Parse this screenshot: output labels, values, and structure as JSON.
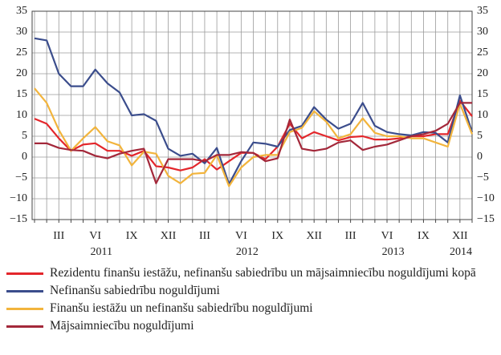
{
  "chart_data": {
    "type": "line",
    "categories": [
      null,
      null,
      "III",
      null,
      null,
      "VI",
      null,
      null,
      "IX",
      null,
      null,
      "XII",
      null,
      null,
      "III",
      null,
      null,
      "VI",
      null,
      null,
      "IX",
      null,
      null,
      "XII",
      null,
      null,
      "III",
      null,
      null,
      "VI",
      null,
      null,
      "IX",
      null,
      null,
      "XII",
      null
    ],
    "year_groups": [
      {
        "label": "2011",
        "span": 12
      },
      {
        "label": "2012",
        "span": 12
      },
      {
        "label": "2013",
        "span": 12
      },
      {
        "label": "2014",
        "span": 1
      }
    ],
    "ylim": [
      -15,
      35
    ],
    "yticks": [
      {
        "value": -15,
        "label": "−15"
      },
      {
        "value": -10,
        "label": "−10"
      },
      {
        "value": -5,
        "label": "−5"
      },
      0,
      5,
      10,
      15,
      20,
      25,
      30,
      35
    ],
    "grid": true,
    "series": [
      {
        "name": "Rezidentu finanšu iestāžu, nefinanšu sabiedrību un mājsaimniecību noguldījumi kopā",
        "color": "#e3262b",
        "values": [
          9.2,
          8,
          4.5,
          1.5,
          3,
          3.3,
          1.5,
          1.5,
          0.3,
          1.5,
          -2.2,
          -2.5,
          -3.2,
          -2.5,
          -0.5,
          -3,
          -1,
          1,
          1,
          -0.5,
          2.5,
          8,
          4.5,
          6,
          5,
          4,
          4.8,
          5,
          4.2,
          4.2,
          4.5,
          5,
          5,
          5.5,
          5.5,
          13.5,
          9.8
        ]
      },
      {
        "name": "Nefinanšu sabiedrību noguldījumi",
        "color": "#3b4d8c",
        "values": [
          28.5,
          28,
          20,
          17,
          17,
          21,
          17.7,
          15.5,
          10,
          10.3,
          8.7,
          2,
          0.3,
          0.8,
          -1.5,
          2.2,
          -6.5,
          -1,
          3.5,
          3.2,
          2.5,
          6.5,
          7.5,
          12,
          9,
          6.8,
          8,
          13,
          7.5,
          6,
          5.5,
          5.2,
          6,
          5.8,
          3.5,
          14.8,
          6
        ]
      },
      {
        "name": "Finanšu iestāžu un nefinanšu sabiedrību noguldījumi",
        "color": "#f2b43c",
        "values": [
          16.5,
          13,
          6.5,
          1.5,
          4.5,
          7.2,
          3.8,
          2.8,
          -2,
          1.3,
          0.8,
          -4.5,
          -6.3,
          -4,
          -3.8,
          0.5,
          -7,
          -2.5,
          0,
          0.5,
          0.5,
          6,
          7,
          11,
          8.5,
          4.5,
          5.5,
          9.3,
          5.8,
          5,
          5,
          4.5,
          4.5,
          3.5,
          2.5,
          12.8,
          5.5
        ]
      },
      {
        "name": "Mājsaimniecību noguldījumi",
        "color": "#a3283a",
        "values": [
          3.3,
          3.3,
          2.2,
          1.7,
          1.5,
          0.3,
          -0.3,
          0.8,
          1.5,
          2,
          -6.3,
          -0.5,
          -0.5,
          -0.5,
          -1,
          0.5,
          0.5,
          1.2,
          1,
          -1,
          -0.3,
          9,
          2,
          1.5,
          2,
          3.5,
          4,
          1.7,
          2.5,
          3,
          4,
          5,
          5.5,
          6.3,
          8,
          13,
          13
        ]
      }
    ]
  }
}
